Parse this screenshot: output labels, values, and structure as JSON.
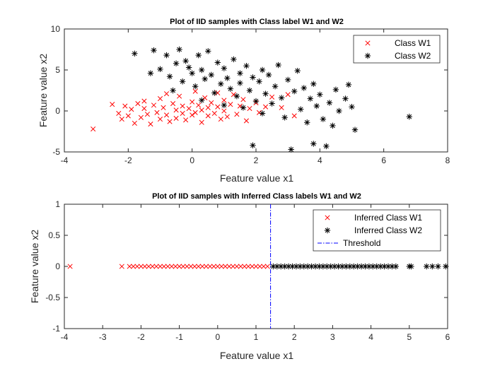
{
  "chart_data": [
    {
      "type": "scatter",
      "title": "Plot of IID samples with Class label W1 and W2",
      "xlabel": "Feature value x1",
      "ylabel": "Feature value x2",
      "xlim": [
        -4,
        8
      ],
      "ylim": [
        -5,
        10
      ],
      "xticks": [
        -4,
        -2,
        0,
        2,
        4,
        6,
        8
      ],
      "yticks": [
        -5,
        0,
        5,
        10
      ],
      "grid": false,
      "legend_position": "top-right",
      "series": [
        {
          "name": "Class W1",
          "marker": "x",
          "color": "#ff0000",
          "points": [
            [
              -3.1,
              -2.2
            ],
            [
              -2.5,
              0.8
            ],
            [
              -2.3,
              -0.3
            ],
            [
              -2.2,
              -1.0
            ],
            [
              -2.1,
              0.6
            ],
            [
              -2.0,
              -0.6
            ],
            [
              -1.9,
              0.2
            ],
            [
              -1.8,
              -1.5
            ],
            [
              -1.7,
              0.9
            ],
            [
              -1.6,
              -0.8
            ],
            [
              -1.5,
              1.2
            ],
            [
              -1.5,
              0.3
            ],
            [
              -1.4,
              -0.4
            ],
            [
              -1.3,
              -1.6
            ],
            [
              -1.2,
              0.7
            ],
            [
              -1.1,
              -0.2
            ],
            [
              -1.0,
              1.5
            ],
            [
              -1.0,
              -1.0
            ],
            [
              -0.9,
              0.4
            ],
            [
              -0.8,
              -0.5
            ],
            [
              -0.8,
              2.1
            ],
            [
              -0.7,
              -1.3
            ],
            [
              -0.6,
              0.9
            ],
            [
              -0.5,
              0.1
            ],
            [
              -0.5,
              -0.9
            ],
            [
              -0.4,
              1.8
            ],
            [
              -0.3,
              -0.3
            ],
            [
              -0.3,
              0.6
            ],
            [
              -0.2,
              -1.1
            ],
            [
              -0.1,
              0.3
            ],
            [
              0.0,
              -0.5
            ],
            [
              0.0,
              1.1
            ],
            [
              0.1,
              2.4
            ],
            [
              0.1,
              -0.2
            ],
            [
              0.2,
              0.7
            ],
            [
              0.3,
              -1.4
            ],
            [
              0.3,
              0.1
            ],
            [
              0.4,
              1.6
            ],
            [
              0.5,
              -0.6
            ],
            [
              0.5,
              0.4
            ],
            [
              0.6,
              1.0
            ],
            [
              0.7,
              -0.3
            ],
            [
              0.8,
              2.2
            ],
            [
              0.8,
              0.5
            ],
            [
              0.9,
              -1.0
            ],
            [
              1.0,
              1.3
            ],
            [
              1.0,
              0.0
            ],
            [
              1.1,
              -0.7
            ],
            [
              1.2,
              0.8
            ],
            [
              1.3,
              2.0
            ],
            [
              1.4,
              -0.4
            ],
            [
              1.5,
              0.6
            ],
            [
              1.6,
              1.4
            ],
            [
              1.7,
              -1.2
            ],
            [
              1.8,
              0.3
            ],
            [
              2.0,
              1.0
            ],
            [
              2.1,
              -0.2
            ],
            [
              2.3,
              0.5
            ],
            [
              2.5,
              1.7
            ],
            [
              2.8,
              0.4
            ],
            [
              3.0,
              2.0
            ],
            [
              3.2,
              -0.6
            ]
          ]
        },
        {
          "name": "Class W2",
          "marker": "*",
          "color": "#000000",
          "points": [
            [
              -1.8,
              7.0
            ],
            [
              -1.3,
              4.6
            ],
            [
              -1.2,
              7.4
            ],
            [
              -1.0,
              5.1
            ],
            [
              -0.8,
              6.8
            ],
            [
              -0.7,
              4.2
            ],
            [
              -0.6,
              2.5
            ],
            [
              -0.5,
              5.8
            ],
            [
              -0.4,
              7.5
            ],
            [
              -0.3,
              3.6
            ],
            [
              -0.2,
              6.1
            ],
            [
              -0.1,
              5.3
            ],
            [
              0.0,
              4.6
            ],
            [
              0.1,
              3.0
            ],
            [
              0.2,
              6.8
            ],
            [
              0.3,
              5.0
            ],
            [
              0.3,
              1.3
            ],
            [
              0.4,
              3.9
            ],
            [
              0.5,
              7.3
            ],
            [
              0.6,
              4.4
            ],
            [
              0.7,
              2.2
            ],
            [
              0.8,
              5.9
            ],
            [
              0.9,
              3.3
            ],
            [
              1.0,
              0.7
            ],
            [
              1.0,
              5.2
            ],
            [
              1.1,
              4.0
            ],
            [
              1.2,
              2.7
            ],
            [
              1.3,
              6.3
            ],
            [
              1.4,
              1.8
            ],
            [
              1.5,
              4.6
            ],
            [
              1.5,
              3.4
            ],
            [
              1.6,
              0.4
            ],
            [
              1.7,
              5.5
            ],
            [
              1.8,
              2.5
            ],
            [
              1.9,
              4.1
            ],
            [
              1.9,
              -4.2
            ],
            [
              2.0,
              1.2
            ],
            [
              2.1,
              3.6
            ],
            [
              2.2,
              5.0
            ],
            [
              2.2,
              -0.3
            ],
            [
              2.3,
              2.1
            ],
            [
              2.4,
              4.4
            ],
            [
              2.5,
              0.9
            ],
            [
              2.6,
              3.0
            ],
            [
              2.7,
              5.6
            ],
            [
              2.8,
              1.6
            ],
            [
              2.9,
              -0.8
            ],
            [
              3.0,
              3.8
            ],
            [
              3.1,
              -4.7
            ],
            [
              3.2,
              2.4
            ],
            [
              3.3,
              4.9
            ],
            [
              3.4,
              0.2
            ],
            [
              3.5,
              2.8
            ],
            [
              3.6,
              -1.4
            ],
            [
              3.7,
              1.5
            ],
            [
              3.8,
              3.3
            ],
            [
              3.8,
              -4.0
            ],
            [
              3.9,
              0.6
            ],
            [
              4.0,
              2.0
            ],
            [
              4.1,
              -1.0
            ],
            [
              4.2,
              -4.3
            ],
            [
              4.3,
              1.0
            ],
            [
              4.4,
              -1.8
            ],
            [
              4.5,
              2.6
            ],
            [
              4.6,
              0.0
            ],
            [
              4.8,
              1.5
            ],
            [
              4.9,
              3.2
            ],
            [
              5.0,
              0.5
            ],
            [
              5.1,
              -2.3
            ],
            [
              6.8,
              -0.7
            ]
          ]
        }
      ]
    },
    {
      "type": "scatter",
      "title": "Plot of IID samples with Inferred Class labels W1 and W2",
      "xlabel": "Feature value x1",
      "ylabel": "Feature value x2",
      "xlim": [
        -4,
        6
      ],
      "ylim": [
        -1,
        1
      ],
      "xticks": [
        -4,
        -3,
        -2,
        -1,
        0,
        1,
        2,
        3,
        4,
        5,
        6
      ],
      "yticks": [
        -1,
        -0.5,
        0,
        0.5,
        1
      ],
      "grid": false,
      "legend_position": "top-right",
      "threshold": 1.38,
      "threshold_label": "Threshold",
      "series": [
        {
          "name": "Inferred Class W1",
          "marker": "x",
          "color": "#ff0000",
          "x": [
            -3.85,
            -2.5,
            -2.3,
            -2.2,
            -2.1,
            -2.0,
            -1.9,
            -1.8,
            -1.7,
            -1.6,
            -1.5,
            -1.4,
            -1.3,
            -1.2,
            -1.1,
            -1.0,
            -0.9,
            -0.8,
            -0.7,
            -0.6,
            -0.5,
            -0.4,
            -0.3,
            -0.2,
            -0.1,
            0.0,
            0.1,
            0.2,
            0.3,
            0.4,
            0.5,
            0.6,
            0.7,
            0.8,
            0.9,
            1.0,
            1.1,
            1.2,
            1.3
          ],
          "y_value": 0
        },
        {
          "name": "Inferred Class W2",
          "marker": "*",
          "color": "#000000",
          "x": [
            1.45,
            1.55,
            1.65,
            1.75,
            1.85,
            1.95,
            2.05,
            2.15,
            2.25,
            2.35,
            2.45,
            2.55,
            2.65,
            2.75,
            2.85,
            2.95,
            3.05,
            3.15,
            3.25,
            3.35,
            3.45,
            3.55,
            3.65,
            3.75,
            3.85,
            3.95,
            4.05,
            4.15,
            4.25,
            4.35,
            4.45,
            4.55,
            4.65,
            5.0,
            5.05,
            5.45,
            5.6,
            5.75,
            5.95
          ],
          "y_value": 0
        }
      ]
    }
  ]
}
